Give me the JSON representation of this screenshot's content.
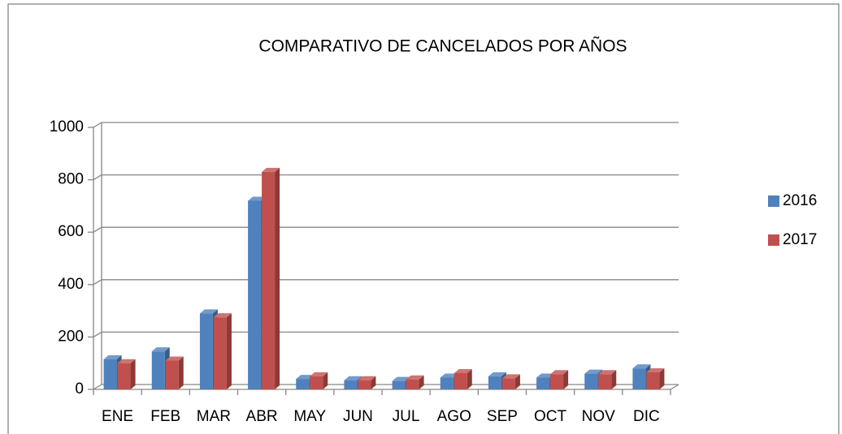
{
  "chart_data": {
    "type": "bar3d",
    "title": "COMPARATIVO DE CANCELADOS POR AÑOS",
    "categories": [
      "ENE",
      "FEB",
      "MAR",
      "ABR",
      "MAY",
      "JUN",
      "JUL",
      "AGO",
      "SEP",
      "OCT",
      "NOV",
      "DIC"
    ],
    "series": [
      {
        "name": "2016",
        "color": "#4f81bd",
        "values": [
          115,
          145,
          290,
          720,
          40,
          35,
          32,
          45,
          50,
          45,
          60,
          80
        ]
      },
      {
        "name": "2017",
        "color": "#c0504d",
        "values": [
          100,
          110,
          275,
          830,
          50,
          35,
          38,
          62,
          42,
          58,
          58,
          65
        ]
      }
    ],
    "ylim": [
      0,
      1000
    ],
    "yticks": [
      0,
      200,
      400,
      600,
      800,
      1000
    ],
    "grid": true,
    "legend": "right"
  }
}
